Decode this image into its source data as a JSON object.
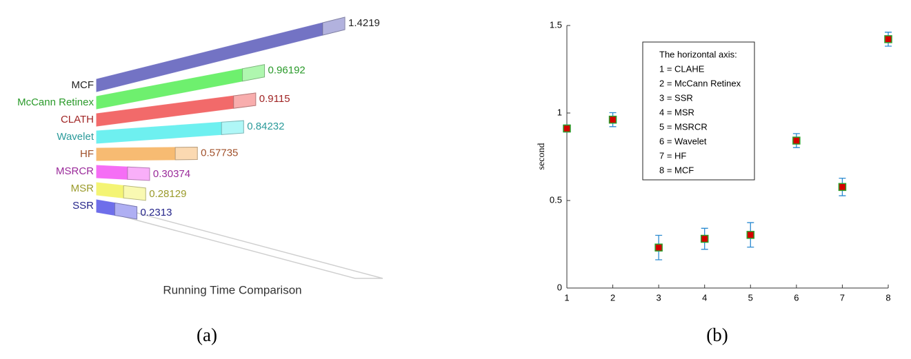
{
  "chart_data": [
    {
      "type": "bar",
      "title": "Running Time Comparison",
      "caption": "(a)",
      "categories": [
        "MCF",
        "McCann Retinex",
        "CLATH",
        "Wavelet",
        "HF",
        "MSRCR",
        "MSR",
        "SSR"
      ],
      "values": [
        1.4219,
        0.96192,
        0.9115,
        0.84232,
        0.57735,
        0.30374,
        0.28129,
        0.2313
      ],
      "colors": [
        "#7373c4",
        "#6ef06e",
        "#f26a6a",
        "#6ef0f0",
        "#f7bb72",
        "#f56ef5",
        "#f4f474",
        "#6e6eea"
      ],
      "label_colors": [
        "#222222",
        "#2a9a2a",
        "#a02424",
        "#2a9a9a",
        "#a0502a",
        "#9a2a9a",
        "#9a9a2a",
        "#24248a"
      ]
    },
    {
      "type": "scatter",
      "caption": "(b)",
      "ylabel": "second",
      "x": [
        1,
        2,
        3,
        4,
        5,
        6,
        7,
        8
      ],
      "values": [
        0.9115,
        0.96192,
        0.2313,
        0.28129,
        0.30374,
        0.84232,
        0.57735,
        1.4219
      ],
      "errors": [
        0.02,
        0.04,
        0.07,
        0.06,
        0.07,
        0.04,
        0.05,
        0.04
      ],
      "color": "#d40000",
      "edge_color": "#2ca02c",
      "error_color": "#2a8ad0",
      "xlim": [
        1,
        8
      ],
      "xticks": [
        1,
        2,
        3,
        4,
        5,
        6,
        7,
        8
      ],
      "ylim": [
        0,
        1.5
      ],
      "yticks": [
        0,
        0.5,
        1,
        1.5
      ],
      "annotation": {
        "title": "The horizontal axis:",
        "lines": [
          "1 = CLAHE",
          "2 = McCann Retinex",
          "3 = SSR",
          "4 = MSR",
          "5 = MSRCR",
          "6 = Wavelet",
          "7 = HF",
          "8 = MCF"
        ]
      }
    }
  ]
}
